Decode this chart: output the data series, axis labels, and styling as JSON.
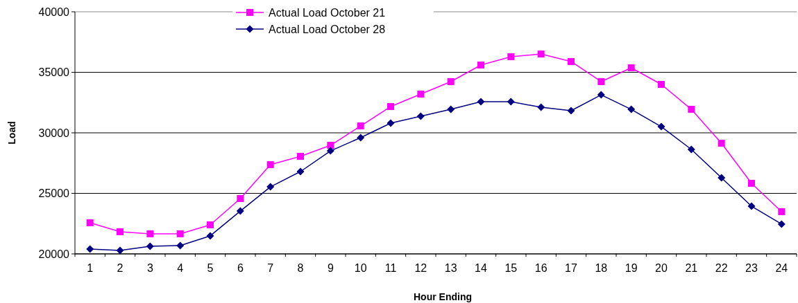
{
  "chart_data": {
    "type": "line",
    "xlabel": "Hour Ending",
    "ylabel": "Load",
    "categories": [
      "1",
      "2",
      "3",
      "4",
      "5",
      "6",
      "7",
      "8",
      "9",
      "10",
      "11",
      "12",
      "13",
      "14",
      "15",
      "16",
      "17",
      "18",
      "19",
      "20",
      "21",
      "22",
      "23",
      "24"
    ],
    "series": [
      {
        "name": "Actual Load October 21",
        "color": "#ff00ff",
        "marker": "square",
        "values": [
          22570,
          21830,
          21660,
          21660,
          22400,
          24570,
          27370,
          28060,
          28970,
          30570,
          32170,
          33200,
          34230,
          35600,
          36290,
          36510,
          35890,
          34230,
          35370,
          34000,
          31940,
          29140,
          25830,
          23490
        ]
      },
      {
        "name": "Actual Load October 28",
        "color": "#000080",
        "marker": "diamond",
        "values": [
          20400,
          20290,
          20630,
          20690,
          21490,
          23540,
          25540,
          26800,
          28510,
          29600,
          30800,
          31370,
          31940,
          32570,
          32570,
          32110,
          31830,
          33140,
          31940,
          30510,
          28630,
          26290,
          23940,
          22460
        ]
      }
    ],
    "ylim": [
      20000,
      40000
    ],
    "yticks": [
      20000,
      25000,
      30000,
      35000,
      40000
    ],
    "grid": "y",
    "legend": "top"
  }
}
